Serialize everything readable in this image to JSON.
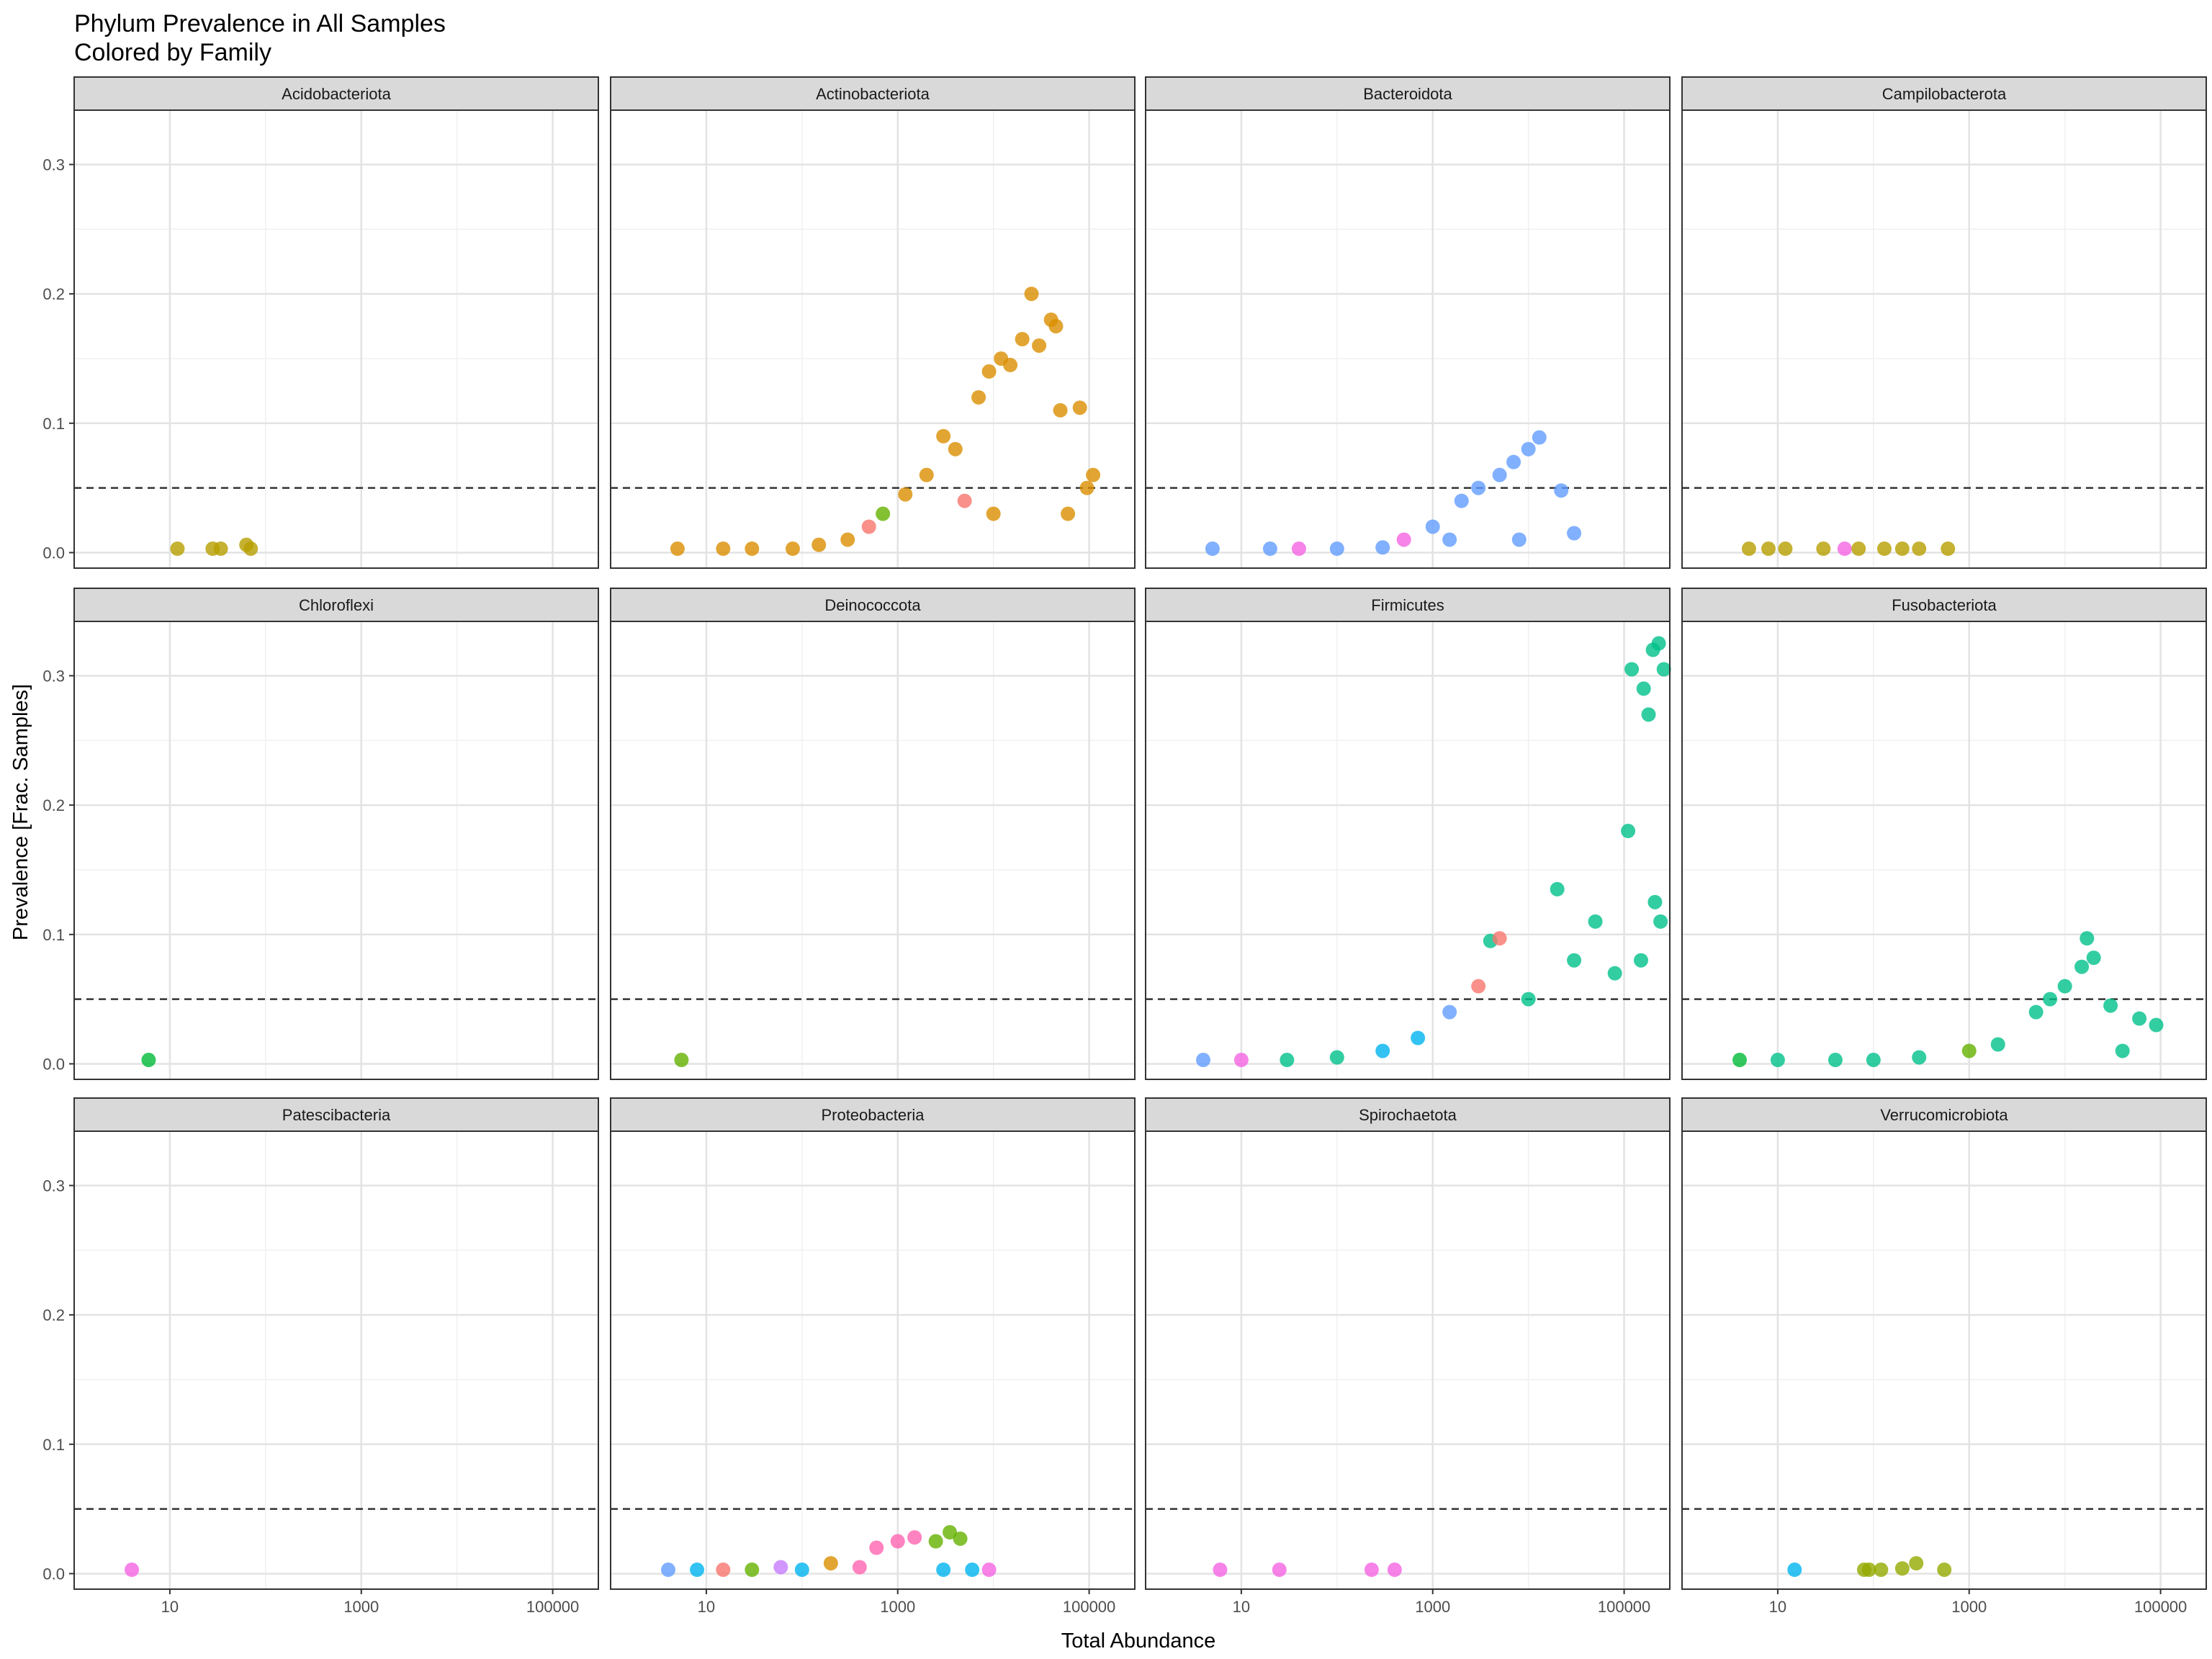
{
  "chart_data": {
    "type": "scatter",
    "title": "Phylum Prevalence in All Samples",
    "subtitle": "Colored by Family",
    "xlabel": "Total Abundance",
    "ylabel": "Prevalence [Frac. Samples]",
    "x_scale": "log10",
    "xlim": [
      1,
      300000
    ],
    "ylim": [
      -0.012,
      0.342
    ],
    "x_ticks": [
      10,
      1000,
      100000
    ],
    "x_tick_labels": [
      "10",
      "1000",
      "100000"
    ],
    "y_ticks": [
      0.0,
      0.1,
      0.2,
      0.3
    ],
    "y_tick_labels": [
      "0.0",
      "0.1",
      "0.2",
      "0.3"
    ],
    "reference_line": {
      "y": 0.05,
      "style": "dashed"
    },
    "grid": true,
    "legend": "none",
    "facet_layout": {
      "rows": 3,
      "cols": 4
    },
    "facets": [
      {
        "name": "Acidobacteriota",
        "points": [
          {
            "x": 12,
            "y": 0.003,
            "color": "#b79f00"
          },
          {
            "x": 28,
            "y": 0.003,
            "color": "#b79f00"
          },
          {
            "x": 34,
            "y": 0.003,
            "color": "#b79f00"
          },
          {
            "x": 63,
            "y": 0.006,
            "color": "#b79f00"
          },
          {
            "x": 70,
            "y": 0.003,
            "color": "#b79f00"
          }
        ]
      },
      {
        "name": "Actinobacteriota",
        "points": [
          {
            "x": 5,
            "y": 0.003,
            "color": "#db8e00"
          },
          {
            "x": 15,
            "y": 0.003,
            "color": "#db8e00"
          },
          {
            "x": 30,
            "y": 0.003,
            "color": "#db8e00"
          },
          {
            "x": 80,
            "y": 0.003,
            "color": "#db8e00"
          },
          {
            "x": 150,
            "y": 0.006,
            "color": "#db8e00"
          },
          {
            "x": 300,
            "y": 0.01,
            "color": "#db8e00"
          },
          {
            "x": 500,
            "y": 0.02,
            "color": "#f8766d"
          },
          {
            "x": 700,
            "y": 0.03,
            "color": "#64b200"
          },
          {
            "x": 1200,
            "y": 0.045,
            "color": "#db8e00"
          },
          {
            "x": 2000,
            "y": 0.06,
            "color": "#db8e00"
          },
          {
            "x": 3000,
            "y": 0.09,
            "color": "#db8e00"
          },
          {
            "x": 4000,
            "y": 0.08,
            "color": "#db8e00"
          },
          {
            "x": 7000,
            "y": 0.12,
            "color": "#db8e00"
          },
          {
            "x": 9000,
            "y": 0.14,
            "color": "#db8e00"
          },
          {
            "x": 12000,
            "y": 0.15,
            "color": "#db8e00"
          },
          {
            "x": 15000,
            "y": 0.145,
            "color": "#db8e00"
          },
          {
            "x": 20000,
            "y": 0.165,
            "color": "#db8e00"
          },
          {
            "x": 25000,
            "y": 0.2,
            "color": "#db8e00"
          },
          {
            "x": 30000,
            "y": 0.16,
            "color": "#db8e00"
          },
          {
            "x": 40000,
            "y": 0.18,
            "color": "#db8e00"
          },
          {
            "x": 45000,
            "y": 0.175,
            "color": "#db8e00"
          },
          {
            "x": 50000,
            "y": 0.11,
            "color": "#db8e00"
          },
          {
            "x": 80000,
            "y": 0.112,
            "color": "#db8e00"
          },
          {
            "x": 95000,
            "y": 0.05,
            "color": "#db8e00"
          },
          {
            "x": 110000,
            "y": 0.06,
            "color": "#db8e00"
          },
          {
            "x": 60000,
            "y": 0.03,
            "color": "#db8e00"
          },
          {
            "x": 10000,
            "y": 0.03,
            "color": "#db8e00"
          },
          {
            "x": 5000,
            "y": 0.04,
            "color": "#f8766d"
          }
        ]
      },
      {
        "name": "Bacteroidota",
        "points": [
          {
            "x": 5,
            "y": 0.003,
            "color": "#619cff"
          },
          {
            "x": 20,
            "y": 0.003,
            "color": "#619cff"
          },
          {
            "x": 40,
            "y": 0.003,
            "color": "#f564e3"
          },
          {
            "x": 100,
            "y": 0.003,
            "color": "#619cff"
          },
          {
            "x": 300,
            "y": 0.004,
            "color": "#619cff"
          },
          {
            "x": 500,
            "y": 0.01,
            "color": "#f564e3"
          },
          {
            "x": 1000,
            "y": 0.02,
            "color": "#619cff"
          },
          {
            "x": 2000,
            "y": 0.04,
            "color": "#619cff"
          },
          {
            "x": 3000,
            "y": 0.05,
            "color": "#619cff"
          },
          {
            "x": 5000,
            "y": 0.06,
            "color": "#619cff"
          },
          {
            "x": 7000,
            "y": 0.07,
            "color": "#619cff"
          },
          {
            "x": 10000,
            "y": 0.08,
            "color": "#619cff"
          },
          {
            "x": 13000,
            "y": 0.089,
            "color": "#619cff"
          },
          {
            "x": 22000,
            "y": 0.048,
            "color": "#619cff"
          },
          {
            "x": 1500,
            "y": 0.01,
            "color": "#619cff"
          },
          {
            "x": 8000,
            "y": 0.01,
            "color": "#619cff"
          },
          {
            "x": 30000,
            "y": 0.015,
            "color": "#619cff"
          }
        ]
      },
      {
        "name": "Campilobacterota",
        "points": [
          {
            "x": 5,
            "y": 0.003,
            "color": "#b79f00"
          },
          {
            "x": 8,
            "y": 0.003,
            "color": "#b79f00"
          },
          {
            "x": 12,
            "y": 0.003,
            "color": "#b79f00"
          },
          {
            "x": 30,
            "y": 0.003,
            "color": "#b79f00"
          },
          {
            "x": 50,
            "y": 0.003,
            "color": "#f564e3"
          },
          {
            "x": 70,
            "y": 0.003,
            "color": "#b79f00"
          },
          {
            "x": 130,
            "y": 0.003,
            "color": "#b79f00"
          },
          {
            "x": 200,
            "y": 0.003,
            "color": "#b79f00"
          },
          {
            "x": 300,
            "y": 0.003,
            "color": "#b79f00"
          },
          {
            "x": 600,
            "y": 0.003,
            "color": "#b79f00"
          }
        ]
      },
      {
        "name": "Chloroflexi",
        "points": [
          {
            "x": 6,
            "y": 0.003,
            "color": "#00ba38"
          }
        ]
      },
      {
        "name": "Deinococcota",
        "points": [
          {
            "x": 5.5,
            "y": 0.003,
            "color": "#64b200"
          }
        ]
      },
      {
        "name": "Firmicutes",
        "points": [
          {
            "x": 4,
            "y": 0.003,
            "color": "#619cff"
          },
          {
            "x": 10,
            "y": 0.003,
            "color": "#f564e3"
          },
          {
            "x": 30,
            "y": 0.003,
            "color": "#00c08b"
          },
          {
            "x": 100,
            "y": 0.005,
            "color": "#00c08b"
          },
          {
            "x": 300,
            "y": 0.01,
            "color": "#00b4f0"
          },
          {
            "x": 700,
            "y": 0.02,
            "color": "#00b4f0"
          },
          {
            "x": 1500,
            "y": 0.04,
            "color": "#619cff"
          },
          {
            "x": 3000,
            "y": 0.06,
            "color": "#f8766d"
          },
          {
            "x": 4000,
            "y": 0.095,
            "color": "#00c08b"
          },
          {
            "x": 5000,
            "y": 0.097,
            "color": "#f8766d"
          },
          {
            "x": 10000,
            "y": 0.05,
            "color": "#00c08b"
          },
          {
            "x": 20000,
            "y": 0.135,
            "color": "#00c08b"
          },
          {
            "x": 30000,
            "y": 0.08,
            "color": "#00c08b"
          },
          {
            "x": 50000,
            "y": 0.11,
            "color": "#00c08b"
          },
          {
            "x": 80000,
            "y": 0.07,
            "color": "#00c08b"
          },
          {
            "x": 110000,
            "y": 0.18,
            "color": "#00c08b"
          },
          {
            "x": 120000,
            "y": 0.305,
            "color": "#00c08b"
          },
          {
            "x": 160000,
            "y": 0.29,
            "color": "#00c08b"
          },
          {
            "x": 180000,
            "y": 0.27,
            "color": "#00c08b"
          },
          {
            "x": 200000,
            "y": 0.32,
            "color": "#00c08b"
          },
          {
            "x": 230000,
            "y": 0.325,
            "color": "#00c08b"
          },
          {
            "x": 260000,
            "y": 0.305,
            "color": "#00c08b"
          },
          {
            "x": 210000,
            "y": 0.125,
            "color": "#00c08b"
          },
          {
            "x": 240000,
            "y": 0.11,
            "color": "#00c08b"
          },
          {
            "x": 150000,
            "y": 0.08,
            "color": "#00c08b"
          }
        ]
      },
      {
        "name": "Fusobacteriota",
        "points": [
          {
            "x": 4,
            "y": 0.003,
            "color": "#00ba38"
          },
          {
            "x": 10,
            "y": 0.003,
            "color": "#00c08b"
          },
          {
            "x": 40,
            "y": 0.003,
            "color": "#00c08b"
          },
          {
            "x": 100,
            "y": 0.003,
            "color": "#00c08b"
          },
          {
            "x": 300,
            "y": 0.005,
            "color": "#00c08b"
          },
          {
            "x": 1000,
            "y": 0.01,
            "color": "#64b200"
          },
          {
            "x": 2000,
            "y": 0.015,
            "color": "#00c08b"
          },
          {
            "x": 5000,
            "y": 0.04,
            "color": "#00c08b"
          },
          {
            "x": 7000,
            "y": 0.05,
            "color": "#00c08b"
          },
          {
            "x": 10000,
            "y": 0.06,
            "color": "#00c08b"
          },
          {
            "x": 15000,
            "y": 0.075,
            "color": "#00c08b"
          },
          {
            "x": 20000,
            "y": 0.082,
            "color": "#00c08b"
          },
          {
            "x": 17000,
            "y": 0.097,
            "color": "#00c08b"
          },
          {
            "x": 30000,
            "y": 0.045,
            "color": "#00c08b"
          },
          {
            "x": 60000,
            "y": 0.035,
            "color": "#00c08b"
          },
          {
            "x": 90000,
            "y": 0.03,
            "color": "#00c08b"
          },
          {
            "x": 40000,
            "y": 0.01,
            "color": "#00c08b"
          }
        ]
      },
      {
        "name": "Patescibacteria",
        "points": [
          {
            "x": 4,
            "y": 0.003,
            "color": "#f564e3"
          }
        ]
      },
      {
        "name": "Proteobacteria",
        "points": [
          {
            "x": 4,
            "y": 0.003,
            "color": "#619cff"
          },
          {
            "x": 8,
            "y": 0.003,
            "color": "#00b4f0"
          },
          {
            "x": 15,
            "y": 0.003,
            "color": "#f8766d"
          },
          {
            "x": 30,
            "y": 0.003,
            "color": "#64b200"
          },
          {
            "x": 60,
            "y": 0.005,
            "color": "#c77cff"
          },
          {
            "x": 100,
            "y": 0.003,
            "color": "#00b4f0"
          },
          {
            "x": 200,
            "y": 0.008,
            "color": "#db8e00"
          },
          {
            "x": 400,
            "y": 0.005,
            "color": "#ff64b0"
          },
          {
            "x": 600,
            "y": 0.02,
            "color": "#ff64b0"
          },
          {
            "x": 1000,
            "y": 0.025,
            "color": "#ff64b0"
          },
          {
            "x": 1500,
            "y": 0.028,
            "color": "#ff64b0"
          },
          {
            "x": 2500,
            "y": 0.025,
            "color": "#64b200"
          },
          {
            "x": 3500,
            "y": 0.032,
            "color": "#64b200"
          },
          {
            "x": 4500,
            "y": 0.027,
            "color": "#64b200"
          },
          {
            "x": 3000,
            "y": 0.003,
            "color": "#00b4f0"
          },
          {
            "x": 6000,
            "y": 0.003,
            "color": "#00b4f0"
          },
          {
            "x": 9000,
            "y": 0.003,
            "color": "#f564e3"
          }
        ]
      },
      {
        "name": "Spirochaetota",
        "points": [
          {
            "x": 6,
            "y": 0.003,
            "color": "#f564e3"
          },
          {
            "x": 25,
            "y": 0.003,
            "color": "#f564e3"
          },
          {
            "x": 230,
            "y": 0.003,
            "color": "#f564e3"
          },
          {
            "x": 400,
            "y": 0.003,
            "color": "#f564e3"
          }
        ]
      },
      {
        "name": "Verrucomicrobiota",
        "points": [
          {
            "x": 15,
            "y": 0.003,
            "color": "#00b4f0"
          },
          {
            "x": 80,
            "y": 0.003,
            "color": "#93aa00"
          },
          {
            "x": 90,
            "y": 0.003,
            "color": "#93aa00"
          },
          {
            "x": 120,
            "y": 0.003,
            "color": "#93aa00"
          },
          {
            "x": 200,
            "y": 0.004,
            "color": "#93aa00"
          },
          {
            "x": 280,
            "y": 0.008,
            "color": "#93aa00"
          },
          {
            "x": 550,
            "y": 0.003,
            "color": "#93aa00"
          }
        ]
      }
    ]
  }
}
